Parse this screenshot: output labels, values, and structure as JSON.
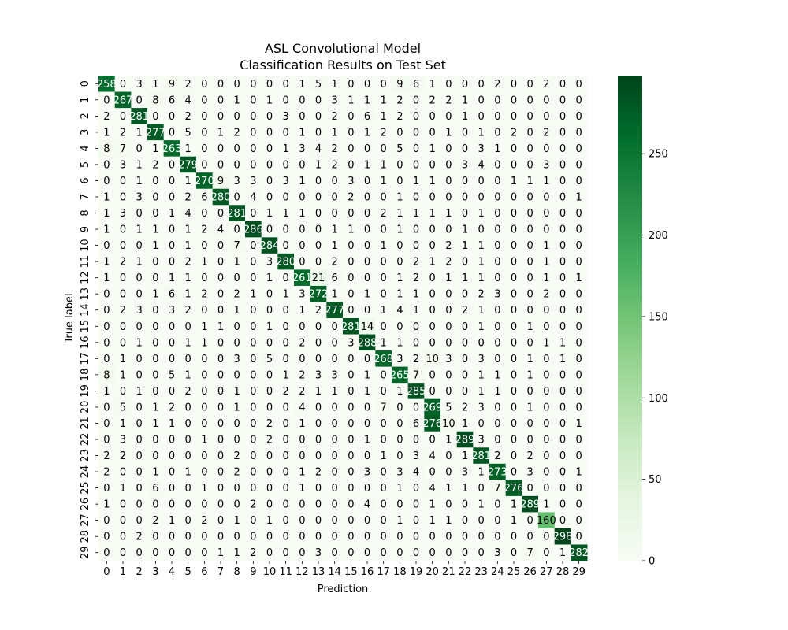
{
  "chart_data": {
    "type": "heatmap",
    "title": "ASL Convolutional Model",
    "subtitle": "Classification Results on Test Set",
    "xlabel": "Prediction",
    "ylabel": "True label",
    "x_categories": [
      "0",
      "1",
      "2",
      "3",
      "4",
      "5",
      "6",
      "7",
      "8",
      "9",
      "10",
      "11",
      "12",
      "13",
      "14",
      "15",
      "16",
      "17",
      "18",
      "19",
      "20",
      "21",
      "22",
      "23",
      "24",
      "25",
      "26",
      "27",
      "28",
      "29"
    ],
    "y_categories": [
      "0",
      "1",
      "2",
      "3",
      "4",
      "5",
      "6",
      "7",
      "8",
      "9",
      "10",
      "11",
      "12",
      "13",
      "14",
      "15",
      "16",
      "17",
      "18",
      "19",
      "20",
      "21",
      "22",
      "23",
      "24",
      "25",
      "26",
      "27",
      "28",
      "29"
    ],
    "colorbar": {
      "min": 0,
      "max": 298,
      "ticks": [
        0,
        50,
        100,
        150,
        200,
        250
      ],
      "colormap": "Greens"
    },
    "values": [
      [
        258,
        0,
        3,
        1,
        9,
        2,
        0,
        0,
        0,
        0,
        0,
        0,
        1,
        5,
        1,
        0,
        0,
        0,
        9,
        6,
        1,
        0,
        0,
        0,
        2,
        0,
        0,
        2,
        0,
        0
      ],
      [
        0,
        267,
        0,
        8,
        6,
        4,
        0,
        0,
        1,
        0,
        1,
        0,
        0,
        0,
        3,
        1,
        1,
        1,
        2,
        0,
        2,
        2,
        1,
        0,
        0,
        0,
        0,
        0,
        0,
        0
      ],
      [
        2,
        0,
        281,
        0,
        0,
        2,
        0,
        0,
        0,
        0,
        0,
        3,
        0,
        0,
        2,
        0,
        6,
        1,
        2,
        0,
        0,
        0,
        1,
        0,
        0,
        0,
        0,
        0,
        0,
        0
      ],
      [
        1,
        2,
        1,
        277,
        0,
        5,
        0,
        1,
        2,
        0,
        0,
        0,
        1,
        0,
        1,
        0,
        1,
        2,
        0,
        0,
        0,
        1,
        0,
        1,
        0,
        2,
        0,
        2,
        0,
        0
      ],
      [
        8,
        7,
        0,
        1,
        263,
        1,
        0,
        0,
        0,
        0,
        0,
        1,
        3,
        4,
        2,
        0,
        0,
        0,
        5,
        0,
        1,
        0,
        0,
        3,
        1,
        0,
        0,
        0,
        0,
        0
      ],
      [
        0,
        3,
        1,
        2,
        0,
        279,
        0,
        0,
        0,
        0,
        0,
        0,
        0,
        1,
        2,
        0,
        1,
        1,
        0,
        0,
        0,
        0,
        3,
        4,
        0,
        0,
        0,
        3,
        0,
        0
      ],
      [
        0,
        0,
        1,
        0,
        0,
        1,
        270,
        9,
        3,
        3,
        0,
        3,
        1,
        0,
        0,
        3,
        0,
        1,
        0,
        1,
        1,
        0,
        0,
        0,
        0,
        1,
        1,
        1,
        0,
        0
      ],
      [
        1,
        0,
        3,
        0,
        0,
        2,
        6,
        280,
        0,
        4,
        0,
        0,
        0,
        0,
        0,
        2,
        0,
        0,
        1,
        0,
        0,
        0,
        0,
        0,
        0,
        0,
        0,
        0,
        0,
        1
      ],
      [
        1,
        3,
        0,
        0,
        1,
        4,
        0,
        0,
        281,
        0,
        1,
        1,
        1,
        0,
        0,
        0,
        0,
        2,
        1,
        1,
        1,
        1,
        0,
        1,
        0,
        0,
        0,
        0,
        0,
        0
      ],
      [
        1,
        0,
        1,
        1,
        0,
        1,
        2,
        4,
        0,
        286,
        0,
        0,
        0,
        0,
        1,
        1,
        0,
        0,
        1,
        0,
        0,
        0,
        1,
        0,
        0,
        0,
        0,
        0,
        0,
        0
      ],
      [
        0,
        0,
        0,
        1,
        0,
        1,
        0,
        0,
        7,
        0,
        284,
        0,
        0,
        0,
        1,
        0,
        0,
        1,
        0,
        0,
        0,
        2,
        1,
        1,
        0,
        0,
        0,
        1,
        0,
        0
      ],
      [
        1,
        2,
        1,
        0,
        0,
        2,
        1,
        0,
        1,
        0,
        3,
        280,
        0,
        0,
        2,
        0,
        0,
        0,
        0,
        2,
        1,
        2,
        0,
        1,
        0,
        0,
        0,
        1,
        0,
        0
      ],
      [
        1,
        0,
        0,
        0,
        1,
        1,
        0,
        0,
        0,
        0,
        1,
        0,
        261,
        21,
        6,
        0,
        0,
        0,
        1,
        2,
        0,
        1,
        1,
        1,
        0,
        0,
        0,
        1,
        0,
        1
      ],
      [
        0,
        0,
        0,
        1,
        6,
        1,
        2,
        0,
        2,
        1,
        0,
        1,
        3,
        272,
        1,
        0,
        1,
        0,
        1,
        1,
        0,
        0,
        0,
        2,
        3,
        0,
        0,
        2,
        0,
        0
      ],
      [
        0,
        2,
        3,
        0,
        3,
        2,
        0,
        0,
        1,
        0,
        0,
        0,
        1,
        2,
        277,
        0,
        0,
        1,
        4,
        1,
        0,
        0,
        2,
        1,
        0,
        0,
        0,
        0,
        0,
        0
      ],
      [
        0,
        0,
        0,
        0,
        0,
        0,
        1,
        1,
        0,
        0,
        1,
        0,
        0,
        0,
        0,
        281,
        14,
        0,
        0,
        0,
        0,
        0,
        0,
        1,
        0,
        0,
        1,
        0,
        0,
        0
      ],
      [
        0,
        0,
        1,
        0,
        0,
        1,
        1,
        0,
        0,
        0,
        0,
        0,
        2,
        0,
        0,
        3,
        288,
        1,
        1,
        0,
        0,
        0,
        0,
        0,
        0,
        0,
        0,
        1,
        1,
        0
      ],
      [
        0,
        1,
        0,
        0,
        0,
        0,
        0,
        0,
        3,
        0,
        5,
        0,
        0,
        0,
        0,
        0,
        0,
        268,
        3,
        2,
        10,
        3,
        0,
        3,
        0,
        0,
        1,
        0,
        1,
        0
      ],
      [
        8,
        1,
        0,
        0,
        5,
        1,
        0,
        0,
        0,
        0,
        0,
        1,
        2,
        3,
        3,
        0,
        1,
        0,
        265,
        7,
        0,
        0,
        0,
        1,
        1,
        0,
        1,
        0,
        0,
        0
      ],
      [
        1,
        0,
        1,
        0,
        0,
        2,
        0,
        0,
        1,
        0,
        0,
        2,
        2,
        1,
        1,
        0,
        1,
        0,
        1,
        285,
        0,
        0,
        0,
        1,
        1,
        0,
        0,
        0,
        0,
        0
      ],
      [
        0,
        5,
        0,
        1,
        2,
        0,
        0,
        0,
        1,
        0,
        0,
        0,
        4,
        0,
        0,
        0,
        0,
        7,
        0,
        0,
        269,
        5,
        2,
        3,
        0,
        0,
        1,
        0,
        0,
        0
      ],
      [
        0,
        1,
        0,
        1,
        1,
        0,
        0,
        0,
        0,
        0,
        2,
        0,
        1,
        0,
        0,
        0,
        0,
        0,
        0,
        6,
        276,
        10,
        1,
        0,
        0,
        0,
        0,
        0,
        0,
        1
      ],
      [
        0,
        3,
        0,
        0,
        0,
        0,
        1,
        0,
        0,
        0,
        2,
        0,
        0,
        0,
        0,
        0,
        1,
        0,
        0,
        0,
        0,
        1,
        289,
        3,
        0,
        0,
        0,
        0,
        0,
        0
      ],
      [
        2,
        2,
        0,
        0,
        0,
        0,
        0,
        0,
        2,
        0,
        0,
        0,
        0,
        0,
        0,
        0,
        0,
        1,
        0,
        3,
        4,
        0,
        1,
        281,
        2,
        0,
        2,
        0,
        0,
        0
      ],
      [
        2,
        0,
        0,
        1,
        0,
        1,
        0,
        0,
        2,
        0,
        0,
        0,
        1,
        2,
        0,
        0,
        3,
        0,
        3,
        4,
        0,
        0,
        3,
        1,
        273,
        0,
        3,
        0,
        0,
        1
      ],
      [
        0,
        1,
        0,
        6,
        0,
        0,
        1,
        0,
        0,
        0,
        0,
        0,
        1,
        0,
        0,
        0,
        0,
        0,
        1,
        0,
        4,
        1,
        1,
        0,
        7,
        276,
        0,
        0,
        0,
        0
      ],
      [
        1,
        0,
        0,
        0,
        0,
        0,
        0,
        0,
        0,
        2,
        0,
        0,
        0,
        0,
        0,
        0,
        4,
        0,
        0,
        0,
        1,
        0,
        0,
        1,
        0,
        1,
        289,
        1,
        0,
        0
      ],
      [
        0,
        0,
        0,
        2,
        1,
        0,
        2,
        0,
        1,
        0,
        1,
        0,
        0,
        0,
        0,
        0,
        0,
        0,
        1,
        0,
        1,
        1,
        0,
        0,
        0,
        1,
        0,
        160,
        0,
        0
      ],
      [
        0,
        0,
        2,
        0,
        0,
        0,
        0,
        0,
        0,
        0,
        0,
        0,
        0,
        0,
        0,
        0,
        0,
        0,
        0,
        0,
        0,
        0,
        0,
        0,
        0,
        0,
        0,
        0,
        298,
        0
      ],
      [
        0,
        0,
        0,
        0,
        0,
        0,
        0,
        1,
        1,
        2,
        0,
        0,
        0,
        3,
        0,
        0,
        0,
        0,
        0,
        0,
        0,
        0,
        0,
        0,
        3,
        0,
        7,
        0,
        1,
        282
      ]
    ]
  }
}
